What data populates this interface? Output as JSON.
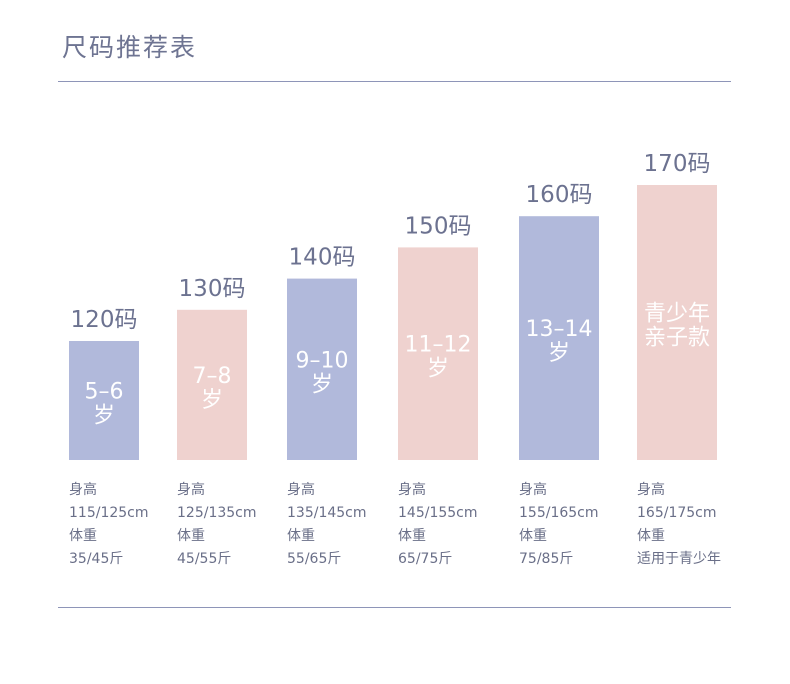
{
  "page": {
    "title": "尺码推荐表"
  },
  "colors": {
    "blue": "#b1b9db",
    "pink": "#efd2cf",
    "text": "#6c7290",
    "rule": "#8e95b8"
  },
  "chart_data": {
    "type": "bar",
    "title": "尺码推荐表",
    "categories": [
      "120码",
      "130码",
      "140码",
      "150码",
      "160码",
      "170码"
    ],
    "values": [
      120,
      130,
      140,
      150,
      160,
      170
    ],
    "ylim": [
      100,
      170
    ],
    "grid": false,
    "bar_colors": [
      "blue",
      "pink",
      "blue",
      "pink",
      "blue",
      "pink"
    ],
    "bar_labels": [
      [
        "5–6",
        "岁"
      ],
      [
        "7–8",
        "岁"
      ],
      [
        "9–10",
        "岁"
      ],
      [
        "11–12",
        "岁"
      ],
      [
        "13–14",
        "岁"
      ],
      [
        "青少年",
        "亲子款"
      ]
    ],
    "details": [
      [
        "身高",
        "115/125cm",
        "体重",
        "35/45斤"
      ],
      [
        "身高",
        "125/135cm",
        "体重",
        "45/55斤"
      ],
      [
        "身高",
        "135/145cm",
        "体重",
        "55/65斤"
      ],
      [
        "身高",
        "145/155cm",
        "体重",
        "65/75斤"
      ],
      [
        "身高",
        "155/165cm",
        "体重",
        "75/85斤"
      ],
      [
        "身高",
        "165/175cm",
        "体重",
        "适用于青少年"
      ]
    ]
  }
}
